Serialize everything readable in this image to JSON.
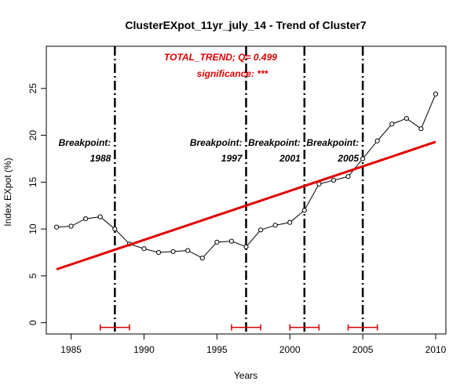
{
  "chart_data": {
    "type": "line",
    "title": "ClusterEXpot_11yr_july_14  -  Trend of Cluster7",
    "xlabel": "Years",
    "ylabel": "Index EXpot (%)",
    "xlim": [
      1983.3,
      2010.7
    ],
    "ylim": [
      -1.2,
      29.5
    ],
    "xticks": [
      1985,
      1990,
      1995,
      2000,
      2005,
      2010
    ],
    "yticks": [
      0,
      5,
      10,
      15,
      20,
      25
    ],
    "grid": false,
    "series": [
      {
        "x": [
          1984,
          1985,
          1986,
          1987,
          1988,
          1989,
          1990,
          1991,
          1992,
          1993,
          1994,
          1995,
          1996,
          1997,
          1998,
          1999,
          2000,
          2001,
          2002,
          2003,
          2004,
          2005,
          2006,
          2007,
          2008,
          2009,
          2010
        ],
        "values": [
          10.2,
          10.3,
          11.1,
          11.3,
          10.0,
          8.4,
          7.9,
          7.5,
          7.6,
          7.7,
          6.9,
          8.6,
          8.7,
          8.1,
          9.9,
          10.4,
          10.7,
          12.0,
          14.8,
          15.2,
          15.6,
          17.5,
          19.4,
          21.2,
          21.8,
          20.7,
          24.4
        ],
        "marker": "open-circle",
        "color": "#000000"
      }
    ],
    "trend_line": {
      "x": [
        1984,
        2010
      ],
      "values": [
        5.7,
        19.3
      ],
      "color": "#e00000"
    },
    "breakpoints": [
      {
        "year": 1988,
        "label": "Breakpoint:",
        "year_label": "1988",
        "ci": [
          1987,
          1989
        ]
      },
      {
        "year": 1997,
        "label": "Breakpoint:",
        "year_label": "1997",
        "ci": [
          1996,
          1998
        ]
      },
      {
        "year": 2001,
        "label": "Breakpoint:",
        "year_label": "2001",
        "ci": [
          2000,
          2002
        ]
      },
      {
        "year": 2005,
        "label": "Breakpoint:",
        "year_label": "2005",
        "ci": [
          2004,
          2006
        ]
      }
    ],
    "ci_y": -0.5,
    "ci_color": "#e00000",
    "annotations": {
      "trend": "TOTAL_TREND;  Q= 0.499",
      "significance": "significance: ***"
    }
  }
}
